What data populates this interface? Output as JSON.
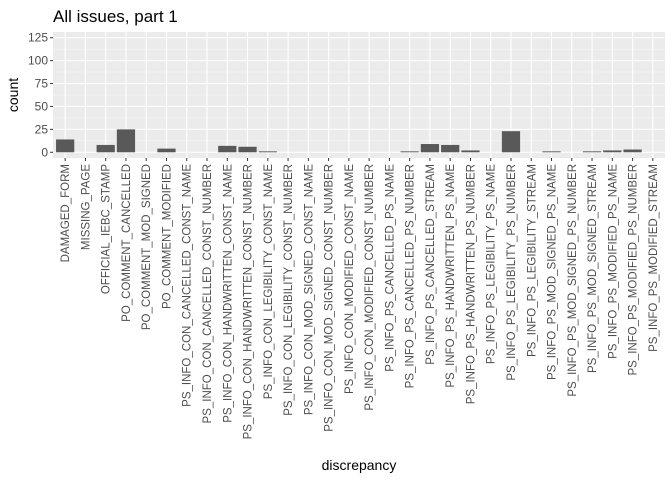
{
  "chart_data": {
    "type": "bar",
    "title": "All issues, part 1",
    "xlabel": "discrepancy",
    "ylabel": "count",
    "ylim": [
      0,
      125
    ],
    "yticks": [
      0,
      25,
      50,
      75,
      100,
      125
    ],
    "grid": true,
    "legend": "none",
    "colors": {
      "bar": "#595959",
      "panel": "#ebebeb",
      "grid_major": "#ffffff",
      "grid_minor": "#f5f5f5",
      "tick_text": "#4d4d4d"
    },
    "categories": [
      "DAMAGED_FORM",
      "MISSING_PAGE",
      "OFFICIAL_IEBC_STAMP",
      "PO_COMMENT_CANCELLED",
      "PO_COMMENT_MOD_SIGNED",
      "PO_COMMENT_MODIFIED",
      "PS_INFO_CON_CANCELLED_CONST_NAME",
      "PS_INFO_CON_CANCELLED_CONST_NUMBER",
      "PS_INFO_CON_HANDWRITTEN_CONST_NAME",
      "PS_INFO_CON_HANDWRITTEN_CONST_NUMBER",
      "PS_INFO_CON_LEGIBILITY_CONST_NAME",
      "PS_INFO_CON_LEGIBILITY_CONST_NUMBER",
      "PS_INFO_CON_MOD_SIGNED_CONST_NAME",
      "PS_INFO_CON_MOD_SIGNED_CONST_NUMBER",
      "PS_INFO_CON_MODIFIED_CONST_NAME",
      "PS_INFO_CON_MODIFIED_CONST_NUMBER",
      "PS_INFO_PS_CANCELLED_PS_NAME",
      "PS_INFO_PS_CANCELLED_PS_NUMBER",
      "PS_INFO_PS_CANCELLED_STREAM",
      "PS_INFO_PS_HANDWRITTEN_PS_NAME",
      "PS_INFO_PS_HANDWRITTEN_PS_NUMBER",
      "PS_INFO_PS_LEGIBILITY_PS_NAME",
      "PS_INFO_PS_LEGIBILITY_PS_NUMBER",
      "PS_INFO_PS_LEGIBILITY_STREAM",
      "PS_INFO_PS_MOD_SIGNED_PS_NAME",
      "PS_INFO_PS_MOD_SIGNED_PS_NUMBER",
      "PS_INFO_PS_MOD_SIGNED_STREAM",
      "PS_INFO_PS_MODIFIED_PS_NAME",
      "PS_INFO_PS_MODIFIED_PS_NUMBER",
      "PS_INFO_PS_MODIFIED_STREAM"
    ],
    "values": [
      14,
      0,
      8,
      25,
      0,
      4,
      0,
      0,
      7,
      6,
      1,
      0,
      0,
      0,
      0,
      0,
      0,
      1,
      9,
      8,
      2,
      0,
      23,
      0,
      1,
      0,
      1,
      2,
      3,
      0
    ]
  }
}
